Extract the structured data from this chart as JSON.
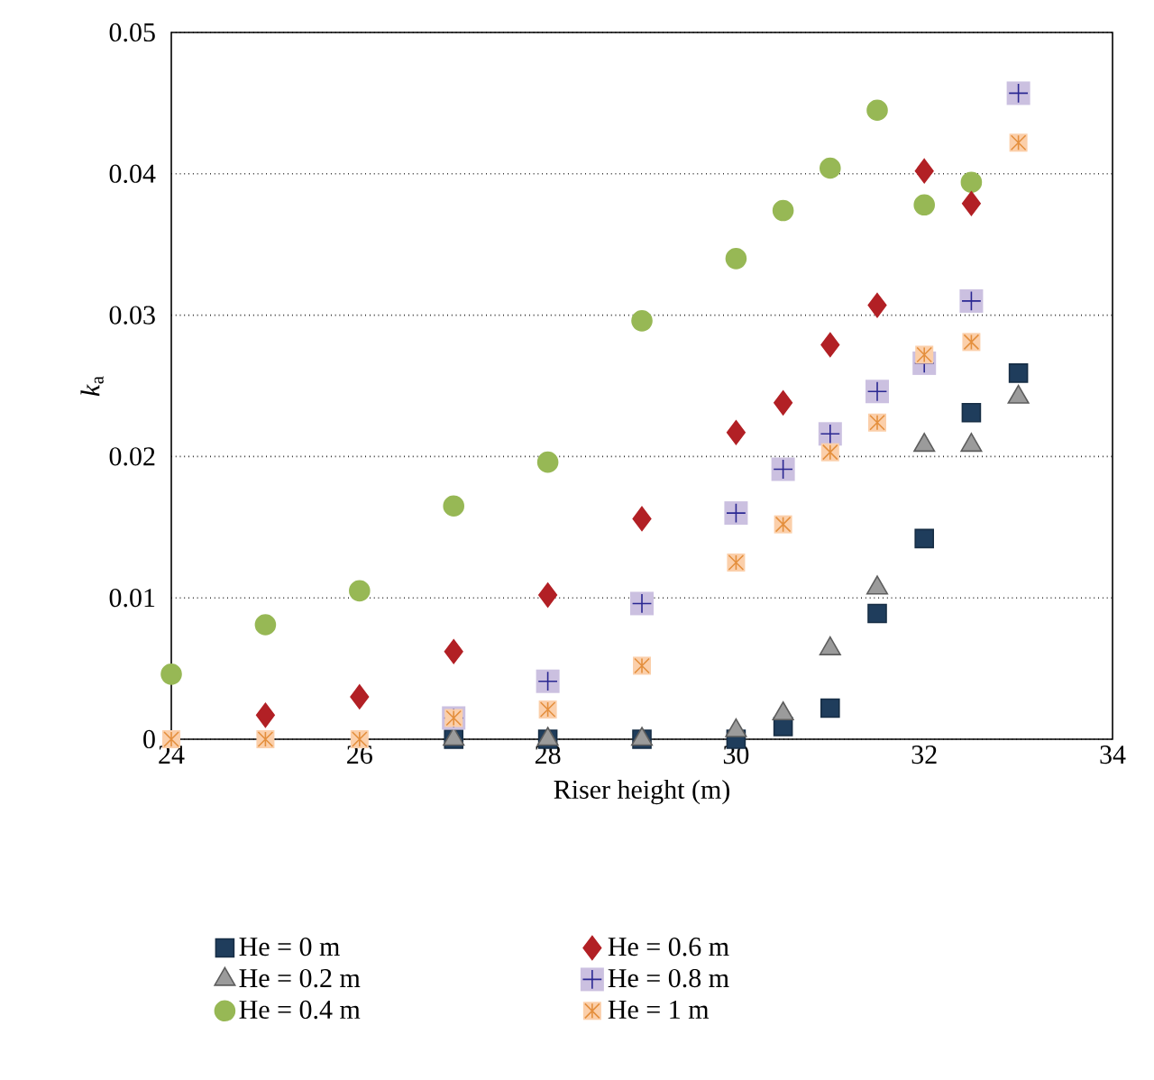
{
  "chart_data": {
    "type": "scatter",
    "xlabel": "Riser height (m)",
    "ylabel": "*k*$_{a}$",
    "x": [
      24,
      25,
      26,
      27,
      28,
      29,
      30,
      30.5,
      31,
      31.5,
      32,
      32.5,
      33
    ],
    "series": [
      {
        "name": "He = 0 m",
        "color": "#1f3d5c",
        "marker": "square",
        "values": [
          null,
          null,
          null,
          0,
          0,
          0,
          0,
          0.0009,
          0.0022,
          0.0089,
          0.0142,
          0.0231,
          0.0259
        ]
      },
      {
        "name": "He = 0.2 m",
        "color": "#9b9b9b",
        "marker": "triangle",
        "values": [
          null,
          null,
          null,
          0,
          0,
          0,
          0.0006,
          0.0018,
          0.0064,
          0.0107,
          0.0208,
          0.0208,
          0.0242
        ]
      },
      {
        "name": "He = 0.4 m",
        "color": "#97b855",
        "marker": "circle",
        "values": [
          0.0046,
          0.0081,
          0.0105,
          0.0165,
          0.0196,
          0.0296,
          0.034,
          0.0374,
          0.0404,
          0.0445,
          0.0378,
          0.0394,
          null
        ]
      },
      {
        "name": "He = 0.6 m",
        "color": "#b22025",
        "marker": "diamond",
        "values": [
          null,
          0.0017,
          0.003,
          0.0062,
          0.0102,
          0.0156,
          0.0217,
          0.0238,
          0.0279,
          0.0307,
          0.0402,
          0.0379,
          null
        ]
      },
      {
        "name": "He = 0.8 m",
        "color": "#cbc0e0",
        "marker": "square",
        "values": [
          null,
          null,
          null,
          0.0015,
          0.0041,
          0.0096,
          0.016,
          0.0191,
          0.0216,
          0.0246,
          0.0266,
          0.031,
          0.0457
        ]
      },
      {
        "name": "He = 1 m",
        "color": "#fbcfaa",
        "marker": "square",
        "values": [
          0,
          0,
          0,
          0.0015,
          0.0021,
          0.0052,
          0.0125,
          0.0152,
          0.0203,
          0.0224,
          0.0272,
          0.0281,
          0.0422
        ]
      }
    ],
    "xlim": [
      24,
      34
    ],
    "ylim": [
      0,
      0.05
    ],
    "xticks": [
      24,
      26,
      28,
      30,
      32,
      34
    ],
    "yticks": [
      0,
      0.01,
      0.02,
      0.03,
      0.04,
      0.05
    ],
    "grid": "y",
    "legend": "bottom"
  }
}
